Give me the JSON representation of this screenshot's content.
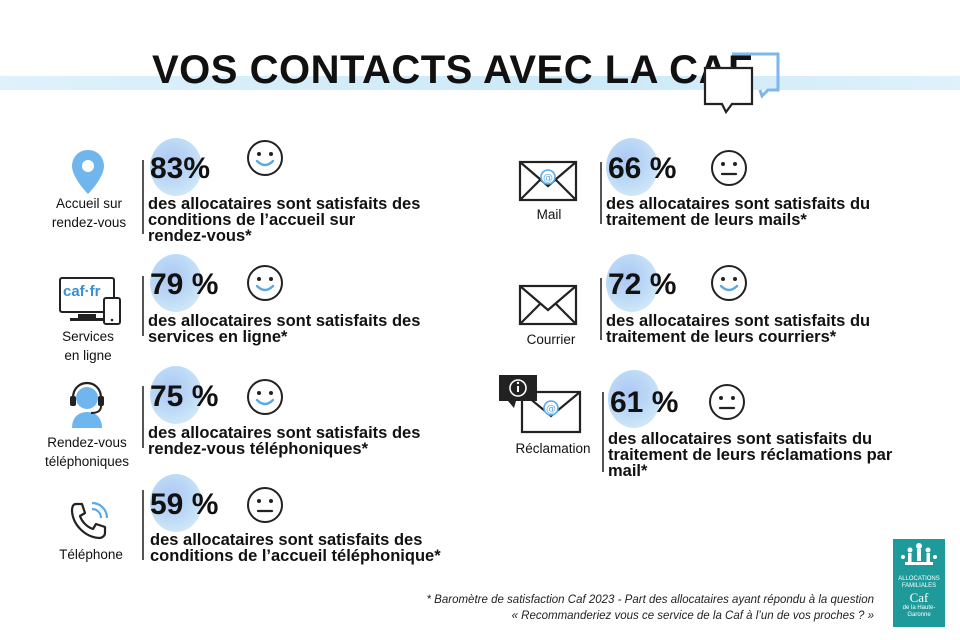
{
  "title": "VOS CONTACTS AVEC LA CAF",
  "items": [
    {
      "label_lines": [
        "Accueil sur",
        "rendez-vous"
      ],
      "percent": "83%",
      "desc_lines": [
        "des allocataires sont satisfaits des",
        "conditions de l’accueil sur",
        "rendez-vous*"
      ],
      "face": "smile-face-icon"
    },
    {
      "label_lines": [
        "Services",
        "en ligne"
      ],
      "percent": "79 %",
      "desc_lines": [
        "des allocataires sont satisfaits des",
        "services en ligne*"
      ],
      "face": "smile-face-icon"
    },
    {
      "label_lines": [
        "Rendez-vous",
        "téléphoniques"
      ],
      "percent": "75 %",
      "desc_lines": [
        "des allocataires sont satisfaits des",
        "rendez-vous téléphoniques*"
      ],
      "face": "smile-face-icon"
    },
    {
      "label_lines": [
        "Téléphone"
      ],
      "percent": "59 %",
      "desc_lines": [
        "des allocataires sont satisfaits des",
        "conditions de l’accueil téléphonique*"
      ],
      "face": "neutral-face-icon"
    },
    {
      "label_lines": [
        "Mail"
      ],
      "percent": "66 %",
      "desc_lines": [
        "des allocataires sont satisfaits du",
        "traitement de leurs mails*"
      ],
      "face": "neutral-face-icon"
    },
    {
      "label_lines": [
        "Courrier"
      ],
      "percent": "72 %",
      "desc_lines": [
        "des allocataires sont satisfaits du",
        "traitement de leurs courriers*"
      ],
      "face": "smile-face-icon"
    },
    {
      "label_lines": [
        "Réclamation"
      ],
      "percent": "61 %",
      "desc_lines": [
        "des allocataires sont satisfaits du",
        "traitement de leurs réclamations par",
        "mail*"
      ],
      "face": "neutral-face-icon"
    }
  ],
  "caf_screen_text": "caf·fr",
  "footnote": {
    "line1": "* Baromètre de satisfaction Caf 2023 - Part des allocataires ayant répondu à la question",
    "line2": "« Recommanderiez vous ce service de la Caf à l’un de vos proches ? »"
  },
  "logo": {
    "line1": "ALLOCATIONS",
    "line2": "FAMILIALES",
    "name": "Caf",
    "sub1": "de la Haute-",
    "sub2": "Garonne"
  },
  "colors": {
    "accent_blue": "#5aa9e6",
    "blob": "#b9d7f5",
    "logo_teal": "#1f9a9a"
  }
}
